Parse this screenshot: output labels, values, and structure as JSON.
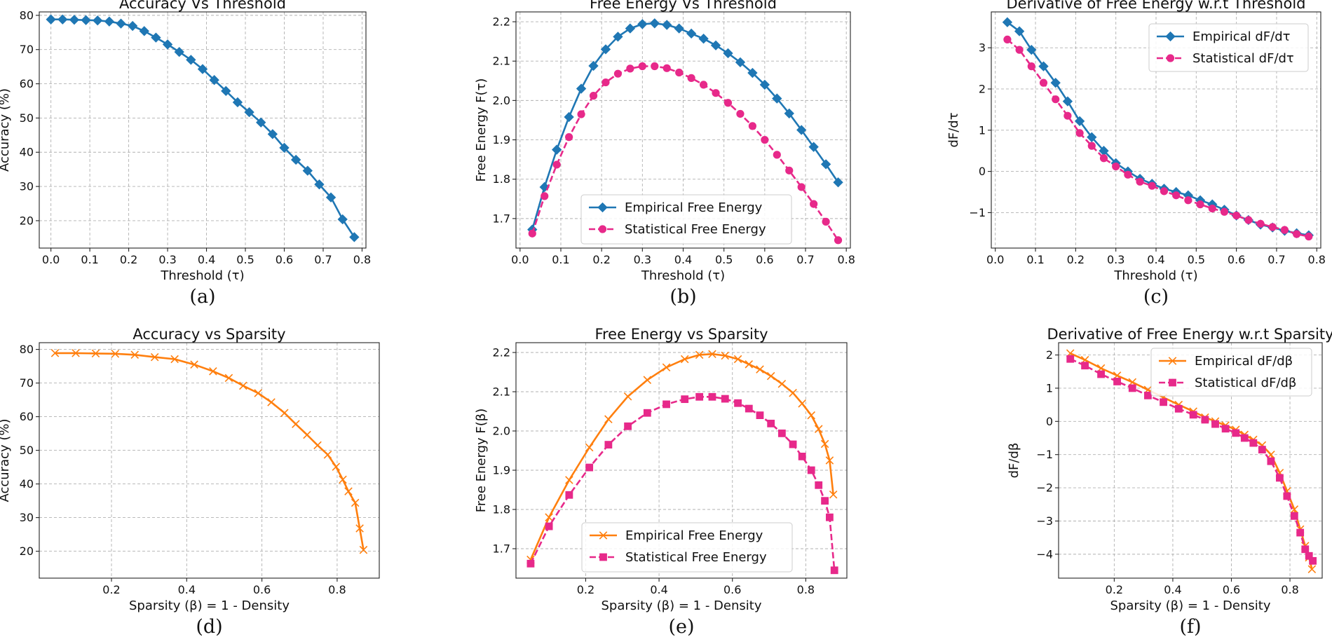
{
  "chart_data": [
    {
      "type": "line",
      "title": "Accuracy Vs Threshold",
      "xlabel": "Threshold (τ)",
      "ylabel": "Accuracy (%)",
      "caption": "(a)",
      "xlim": [
        -0.03,
        0.81
      ],
      "ylim": [
        12,
        81
      ],
      "xticks": [
        "0.0",
        "0.1",
        "0.2",
        "0.3",
        "0.4",
        "0.5",
        "0.6",
        "0.7",
        "0.8"
      ],
      "xtick_values": [
        0.0,
        0.1,
        0.2,
        0.3,
        0.4,
        0.5,
        0.6,
        0.7,
        0.8
      ],
      "yticks": [
        "20",
        "30",
        "40",
        "50",
        "60",
        "70",
        "80"
      ],
      "ytick_values": [
        20,
        30,
        40,
        50,
        60,
        70,
        80
      ],
      "grid": true,
      "series": [
        {
          "color": "#1f77b4",
          "marker": "diamond",
          "dash": "solid",
          "x": [
            0.0,
            0.03,
            0.06,
            0.09,
            0.12,
            0.15,
            0.18,
            0.21,
            0.24,
            0.27,
            0.3,
            0.33,
            0.36,
            0.39,
            0.42,
            0.45,
            0.48,
            0.51,
            0.54,
            0.57,
            0.6,
            0.63,
            0.66,
            0.69,
            0.72,
            0.75,
            0.78
          ],
          "y": [
            78.8,
            78.8,
            78.7,
            78.6,
            78.5,
            78.2,
            77.6,
            76.9,
            75.4,
            73.5,
            71.5,
            69.3,
            67.0,
            64.3,
            61.1,
            57.9,
            54.6,
            51.7,
            48.7,
            45.3,
            41.3,
            37.8,
            34.6,
            30.6,
            26.8,
            20.4,
            15.2
          ]
        }
      ]
    },
    {
      "type": "line",
      "title": "Free Energy Vs Threshold",
      "xlabel": "Threshold (τ)",
      "ylabel": "Free Energy F(τ)",
      "caption": "(b)",
      "xlim": [
        -0.01,
        0.81
      ],
      "ylim": [
        1.625,
        2.225
      ],
      "xticks": [
        "0.0",
        "0.1",
        "0.2",
        "0.3",
        "0.4",
        "0.5",
        "0.6",
        "0.7",
        "0.8"
      ],
      "xtick_values": [
        0.0,
        0.1,
        0.2,
        0.3,
        0.4,
        0.5,
        0.6,
        0.7,
        0.8
      ],
      "yticks": [
        "1.7",
        "1.8",
        "1.9",
        "2.0",
        "2.1",
        "2.2"
      ],
      "ytick_values": [
        1.7,
        1.8,
        1.9,
        2.0,
        2.1,
        2.2
      ],
      "grid": true,
      "legend": "lower center",
      "series": [
        {
          "name": "Empirical Free Energy",
          "color": "#1f77b4",
          "marker": "diamond",
          "dash": "solid",
          "x": [
            0.03,
            0.06,
            0.09,
            0.12,
            0.15,
            0.18,
            0.21,
            0.24,
            0.27,
            0.3,
            0.33,
            0.36,
            0.39,
            0.42,
            0.45,
            0.48,
            0.51,
            0.54,
            0.57,
            0.6,
            0.63,
            0.66,
            0.69,
            0.72,
            0.75,
            0.78
          ],
          "y": [
            1.672,
            1.78,
            1.875,
            1.958,
            2.03,
            2.088,
            2.13,
            2.162,
            2.183,
            2.194,
            2.196,
            2.192,
            2.183,
            2.17,
            2.157,
            2.14,
            2.12,
            2.097,
            2.07,
            2.04,
            2.005,
            1.967,
            1.925,
            1.882,
            1.838,
            1.792
          ]
        },
        {
          "name": "Statistical Free Energy",
          "color": "#e7298a",
          "marker": "circle",
          "dash": "dashed",
          "x": [
            0.03,
            0.06,
            0.09,
            0.12,
            0.15,
            0.18,
            0.21,
            0.24,
            0.27,
            0.3,
            0.33,
            0.36,
            0.39,
            0.42,
            0.45,
            0.48,
            0.51,
            0.54,
            0.57,
            0.6,
            0.63,
            0.66,
            0.69,
            0.72,
            0.75,
            0.78
          ],
          "y": [
            1.662,
            1.757,
            1.837,
            1.907,
            1.965,
            2.012,
            2.046,
            2.068,
            2.081,
            2.087,
            2.087,
            2.082,
            2.071,
            2.057,
            2.04,
            2.019,
            1.994,
            1.966,
            1.935,
            1.9,
            1.862,
            1.822,
            1.78,
            1.737,
            1.692,
            1.645
          ]
        }
      ]
    },
    {
      "type": "line",
      "title": "Derivative of Free Energy w.r.t Threshold",
      "xlabel": "Threshold (τ)",
      "ylabel": "dF/dτ",
      "caption": "(c)",
      "xlim": [
        -0.01,
        0.81
      ],
      "ylim": [
        -1.86,
        3.87
      ],
      "xticks": [
        "0.0",
        "0.1",
        "0.2",
        "0.3",
        "0.4",
        "0.5",
        "0.6",
        "0.7",
        "0.8"
      ],
      "xtick_values": [
        0.0,
        0.1,
        0.2,
        0.3,
        0.4,
        0.5,
        0.6,
        0.7,
        0.8
      ],
      "yticks": [
        "−1",
        "0",
        "1",
        "2",
        "3"
      ],
      "ytick_values": [
        -1,
        0,
        1,
        2,
        3
      ],
      "grid": true,
      "legend": "upper right",
      "series": [
        {
          "name": "Empirical dF/dτ",
          "color": "#1f77b4",
          "marker": "diamond",
          "dash": "solid",
          "x": [
            0.03,
            0.06,
            0.09,
            0.12,
            0.15,
            0.18,
            0.21,
            0.24,
            0.27,
            0.3,
            0.33,
            0.36,
            0.39,
            0.42,
            0.45,
            0.48,
            0.51,
            0.54,
            0.57,
            0.6,
            0.63,
            0.66,
            0.69,
            0.72,
            0.75,
            0.78
          ],
          "y": [
            3.62,
            3.4,
            2.95,
            2.55,
            2.15,
            1.7,
            1.22,
            0.83,
            0.5,
            0.2,
            0.0,
            -0.18,
            -0.3,
            -0.42,
            -0.5,
            -0.58,
            -0.7,
            -0.8,
            -0.93,
            -1.07,
            -1.18,
            -1.29,
            -1.36,
            -1.44,
            -1.5,
            -1.55
          ]
        },
        {
          "name": "Statistical dF/dτ",
          "color": "#e7298a",
          "marker": "circle",
          "dash": "dashed",
          "x": [
            0.03,
            0.06,
            0.09,
            0.12,
            0.15,
            0.18,
            0.21,
            0.24,
            0.27,
            0.3,
            0.33,
            0.36,
            0.39,
            0.42,
            0.45,
            0.48,
            0.51,
            0.54,
            0.57,
            0.6,
            0.63,
            0.66,
            0.69,
            0.72,
            0.75,
            0.78
          ],
          "y": [
            3.2,
            2.95,
            2.55,
            2.15,
            1.75,
            1.35,
            0.93,
            0.62,
            0.32,
            0.12,
            -0.08,
            -0.25,
            -0.35,
            -0.48,
            -0.58,
            -0.7,
            -0.8,
            -0.9,
            -0.98,
            -1.07,
            -1.18,
            -1.27,
            -1.35,
            -1.42,
            -1.52,
            -1.58
          ]
        }
      ]
    },
    {
      "type": "line",
      "title": "Accuracy vs Sparsity",
      "xlabel": "Sparsity (β) = 1 - Density",
      "ylabel": "Accuracy (%)",
      "caption": "(d)",
      "xlim": [
        0.008,
        0.912
      ],
      "ylim": [
        12,
        82
      ],
      "xticks": [
        "0.2",
        "0.4",
        "0.6",
        "0.8"
      ],
      "xtick_values": [
        0.2,
        0.4,
        0.6,
        0.8
      ],
      "yticks": [
        "10",
        "20",
        "30",
        "40",
        "50",
        "60",
        "70",
        "80"
      ],
      "ytick_values": [
        10,
        20,
        30,
        40,
        50,
        60,
        70,
        80
      ],
      "grid": true,
      "series": [
        {
          "color": "#ff7f0e",
          "marker": "x",
          "dash": "solid",
          "x": [
            0.05,
            0.105,
            0.158,
            0.21,
            0.262,
            0.315,
            0.368,
            0.42,
            0.47,
            0.512,
            0.55,
            0.59,
            0.625,
            0.66,
            0.69,
            0.72,
            0.748,
            0.775,
            0.797,
            0.815,
            0.83,
            0.848,
            0.86,
            0.87
          ],
          "y": [
            78.9,
            78.9,
            78.8,
            78.7,
            78.4,
            77.7,
            77.1,
            75.5,
            73.5,
            71.5,
            69.2,
            67.0,
            64.3,
            61.1,
            57.8,
            54.6,
            51.5,
            48.7,
            45.1,
            41.3,
            37.8,
            34.4,
            26.8,
            20.4
          ]
        }
      ]
    },
    {
      "type": "line",
      "title": "Free Energy vs Sparsity",
      "xlabel": "Sparsity (β) = 1 - Density",
      "ylabel": "Free Energy F(β)",
      "caption": "(e)",
      "xlim": [
        0.01,
        0.912
      ],
      "ylim": [
        1.625,
        2.225
      ],
      "xticks": [
        "0.2",
        "0.4",
        "0.6",
        "0.8"
      ],
      "xtick_values": [
        0.2,
        0.4,
        0.6,
        0.8
      ],
      "yticks": [
        "1.7",
        "1.8",
        "1.9",
        "2.0",
        "2.1",
        "2.2"
      ],
      "ytick_values": [
        1.7,
        1.8,
        1.9,
        2.0,
        2.1,
        2.2
      ],
      "grid": true,
      "legend": "lower center",
      "series": [
        {
          "name": "Empirical Free Energy",
          "color": "#ff7f0e",
          "marker": "x",
          "dash": "solid",
          "x": [
            0.05,
            0.1,
            0.155,
            0.21,
            0.262,
            0.315,
            0.368,
            0.42,
            0.47,
            0.51,
            0.545,
            0.58,
            0.615,
            0.645,
            0.675,
            0.705,
            0.735,
            0.765,
            0.79,
            0.815,
            0.835,
            0.852,
            0.865,
            0.875
          ],
          "y": [
            1.672,
            1.78,
            1.875,
            1.958,
            2.03,
            2.088,
            2.13,
            2.162,
            2.183,
            2.194,
            2.196,
            2.192,
            2.183,
            2.17,
            2.157,
            2.14,
            2.12,
            2.097,
            2.07,
            2.04,
            2.005,
            1.967,
            1.925,
            1.838
          ]
        },
        {
          "name": "Statistical Free Energy",
          "color": "#e7298a",
          "marker": "square",
          "dash": "dashed",
          "x": [
            0.05,
            0.1,
            0.155,
            0.21,
            0.262,
            0.315,
            0.368,
            0.42,
            0.47,
            0.51,
            0.545,
            0.58,
            0.615,
            0.645,
            0.675,
            0.705,
            0.735,
            0.765,
            0.79,
            0.815,
            0.835,
            0.852,
            0.865,
            0.878
          ],
          "y": [
            1.662,
            1.757,
            1.837,
            1.907,
            1.965,
            2.012,
            2.046,
            2.068,
            2.081,
            2.087,
            2.087,
            2.082,
            2.071,
            2.057,
            2.04,
            2.019,
            1.994,
            1.966,
            1.935,
            1.9,
            1.862,
            1.822,
            1.78,
            1.645
          ]
        }
      ]
    },
    {
      "type": "line",
      "title": "Derivative of Free Energy w.r.t Sparsity",
      "xlabel": "Sparsity (β) = 1 - Density",
      "ylabel": "dF/dβ",
      "caption": "(f)",
      "xlim": [
        0.01,
        0.91
      ],
      "ylim": [
        -4.72,
        2.37
      ],
      "xticks": [
        "0.2",
        "0.4",
        "0.6",
        "0.8"
      ],
      "xtick_values": [
        0.2,
        0.4,
        0.6,
        0.8
      ],
      "yticks": [
        "−4",
        "−3",
        "−2",
        "−1",
        "0",
        "1",
        "2"
      ],
      "ytick_values": [
        -4,
        -3,
        -2,
        -1,
        0,
        1,
        2
      ],
      "grid": true,
      "legend": "upper right",
      "series": [
        {
          "name": "Empirical dF/dβ",
          "color": "#ff7f0e",
          "marker": "x",
          "dash": "solid",
          "x": [
            0.05,
            0.1,
            0.155,
            0.21,
            0.262,
            0.315,
            0.368,
            0.42,
            0.47,
            0.51,
            0.545,
            0.58,
            0.615,
            0.645,
            0.675,
            0.705,
            0.735,
            0.765,
            0.79,
            0.815,
            0.835,
            0.852,
            0.865,
            0.875
          ],
          "y": [
            2.05,
            1.85,
            1.6,
            1.38,
            1.18,
            0.95,
            0.72,
            0.5,
            0.3,
            0.12,
            0.0,
            -0.12,
            -0.25,
            -0.4,
            -0.55,
            -0.72,
            -1.0,
            -1.55,
            -2.1,
            -2.65,
            -3.25,
            -3.75,
            -4.1,
            -4.45
          ]
        },
        {
          "name": "Statistical dF/dβ",
          "color": "#e7298a",
          "marker": "square",
          "dash": "dashed",
          "x": [
            0.05,
            0.1,
            0.155,
            0.21,
            0.262,
            0.315,
            0.368,
            0.42,
            0.47,
            0.51,
            0.545,
            0.58,
            0.615,
            0.645,
            0.675,
            0.705,
            0.735,
            0.765,
            0.79,
            0.815,
            0.835,
            0.852,
            0.865,
            0.878
          ],
          "y": [
            1.88,
            1.68,
            1.42,
            1.2,
            1.0,
            0.78,
            0.58,
            0.38,
            0.2,
            0.05,
            -0.08,
            -0.22,
            -0.35,
            -0.5,
            -0.65,
            -0.85,
            -1.2,
            -1.7,
            -2.25,
            -2.85,
            -3.35,
            -3.85,
            -4.05,
            -4.2
          ]
        }
      ]
    }
  ]
}
